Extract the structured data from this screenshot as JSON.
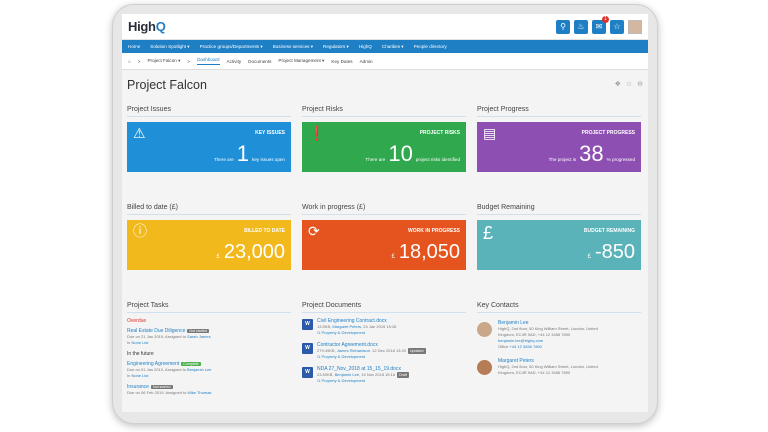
{
  "app": {
    "logo_high": "High",
    "logo_q": "Q"
  },
  "topbar": {
    "notification_count": "1"
  },
  "nav": [
    "Home",
    "Solution Spotlight ▾",
    "Practice groups/Departments ▾",
    "Business services ▾",
    "Regulators ▾",
    "HighQ",
    "Charities ▾",
    "People directory"
  ],
  "subnav": {
    "breadcrumb": "Project Falcon ▾",
    "sep": ">",
    "tabs": [
      "Dashboard",
      "Activity",
      "Documents",
      "Project Management ▾",
      "Key Dates",
      "Admin"
    ],
    "active": "Dashboard"
  },
  "page": {
    "title": "Project Falcon"
  },
  "sections": {
    "issues": "Project Issues",
    "risks": "Project Risks",
    "progress": "Project Progress",
    "billed": "Billed to date (£)",
    "wip": "Work in progress (£)",
    "budget": "Budget Remaining",
    "tasks": "Project Tasks",
    "documents": "Project Documents",
    "contacts": "Key Contacts"
  },
  "tiles": {
    "issues": {
      "label": "KEY ISSUES",
      "pre": "There are",
      "num": "1",
      "post": "key issues open",
      "color": "#1f8fd8",
      "icon": "warning-icon"
    },
    "risks": {
      "label": "PROJECT RISKS",
      "pre": "There are",
      "num": "10",
      "post": "project risks identified",
      "color": "#30a84e",
      "icon": "exclamation-icon"
    },
    "progress": {
      "label": "PROJECT PROGRESS",
      "pre": "The project is",
      "num": "38",
      "post": "% progressed",
      "color": "#8e4fb3",
      "icon": "bar-chart-icon"
    },
    "billed": {
      "label": "BILLED TO DATE",
      "cur": "£",
      "num": "23,000",
      "color": "#f2b91c",
      "icon": "pound-coin-icon"
    },
    "wip": {
      "label": "WORK IN PROGRESS",
      "cur": "£",
      "num": "18,050",
      "color": "#e5541e",
      "icon": "refresh-icon"
    },
    "budget": {
      "label": "BUDGET REMAINING",
      "cur": "£",
      "num": "-850",
      "color": "#5ab3b9",
      "icon": "pound-icon"
    }
  },
  "tasks": {
    "overdue_label": "Overdue",
    "future_label": "In the future",
    "items": [
      {
        "title": "Real Estate Due Diligence",
        "tag": "Not started",
        "tag_color": "grey",
        "meta1": "Due on 21 Jan 2019, Assigned to ",
        "assignee": "Sarah James",
        "meta2": "In ",
        "list": "None List"
      },
      {
        "title": "Engineering Agreement",
        "tag": "Complete",
        "tag_color": "green",
        "meta1": "Due on 01 Jan 2019, Assigned to ",
        "assignee": "Benjamin Lee",
        "meta2": "In ",
        "list": "None List"
      },
      {
        "title": "Insurance",
        "tag": "Not started",
        "tag_color": "grey",
        "meta1": "Due on 06 Feb 2019, Assigned to ",
        "assignee": "Mike Thomas",
        "meta2": "",
        "list": ""
      }
    ]
  },
  "documents": [
    {
      "name": "Civil Engineering Contract.docx",
      "meta_size": "13.5KB, ",
      "author": "Margaret Peters",
      "meta_date": ", 24 Jan 2019 15:26",
      "tag": "",
      "folder": "/1 Property & Development"
    },
    {
      "name": "Contractor Agreement.docx",
      "meta_size": "279.49KB, ",
      "author": "James Richardson",
      "meta_date": ", 12 Dec 2018 13:20",
      "tag": "Updated",
      "folder": "/1 Property & Development"
    },
    {
      "name": "NDA 27_Nov_2018 at 15_15_19.docx",
      "meta_size": "23.50KB, ",
      "author": "Benjamin Lee",
      "meta_date": ", 15 Nov 2018 15:16",
      "tag": "Draft",
      "folder": "/1 Property & Development"
    }
  ],
  "contacts": [
    {
      "name": "Benjamin Lee",
      "addr1": "HighQ, 2nd floor, 50 King William Street, London, United",
      "addr2": "Kingdom, EC4R 9AD, +44 12 3456 7890",
      "email": "benjamin.lee@highq.com",
      "office_label": "Office ",
      "office": "+44 12 3456 7890"
    },
    {
      "name": "Margaret Peters",
      "addr1": "HighQ, 2nd floor, 50 King William Street, London, United",
      "addr2": "Kingdom, EC4R 9AD, +44 12 3456 7890",
      "email": "",
      "office_label": "",
      "office": ""
    }
  ]
}
